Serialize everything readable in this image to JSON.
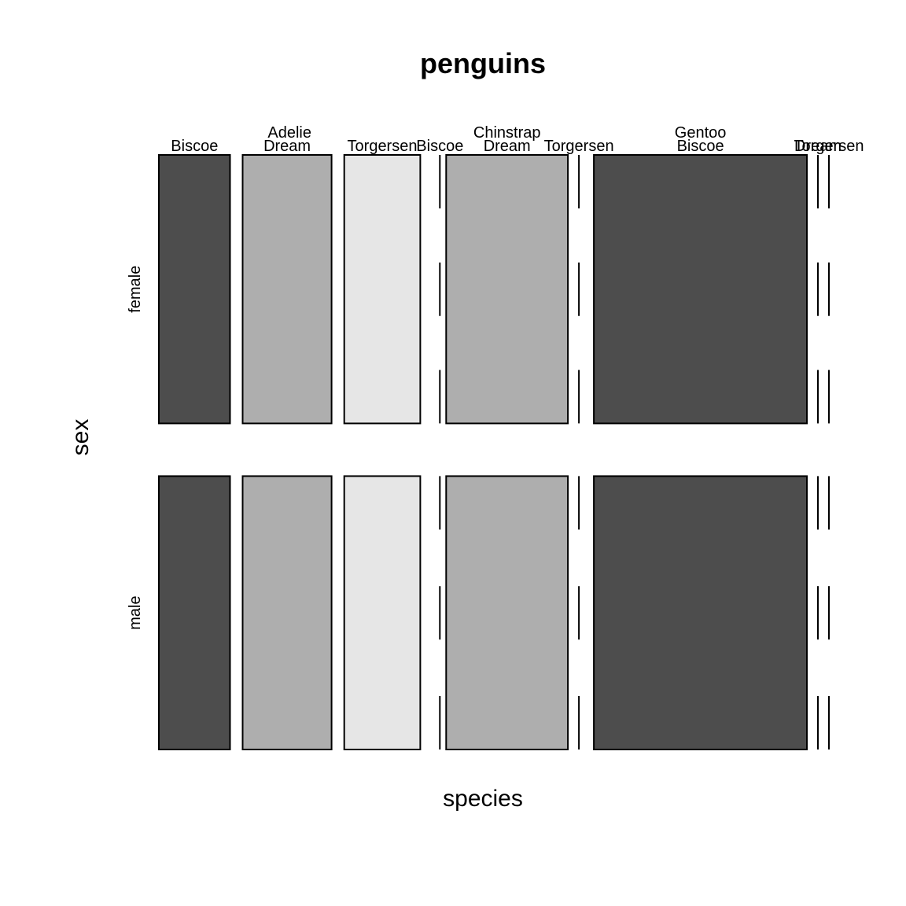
{
  "chart_data": {
    "type": "mosaic",
    "title": "penguins",
    "xlabel": "species",
    "ylabel": "sex",
    "sex_levels": [
      "female",
      "male"
    ],
    "island_levels": [
      "Biscoe",
      "Dream",
      "Torgersen"
    ],
    "colors": {
      "Biscoe": "#4d4d4d",
      "Dream": "#aeaeae",
      "Torgersen": "#e6e6e6",
      "border": "#000000",
      "background": "#ffffff"
    },
    "species": [
      {
        "name": "Adelie",
        "counts": {
          "female": [
            22,
            27,
            24
          ],
          "male": [
            22,
            28,
            23
          ]
        }
      },
      {
        "name": "Chinstrap",
        "counts": {
          "female": [
            0,
            34,
            0
          ],
          "male": [
            0,
            34,
            0
          ]
        }
      },
      {
        "name": "Gentoo",
        "counts": {
          "female": [
            58,
            0,
            0
          ],
          "male": [
            61,
            0,
            0
          ]
        }
      }
    ]
  }
}
